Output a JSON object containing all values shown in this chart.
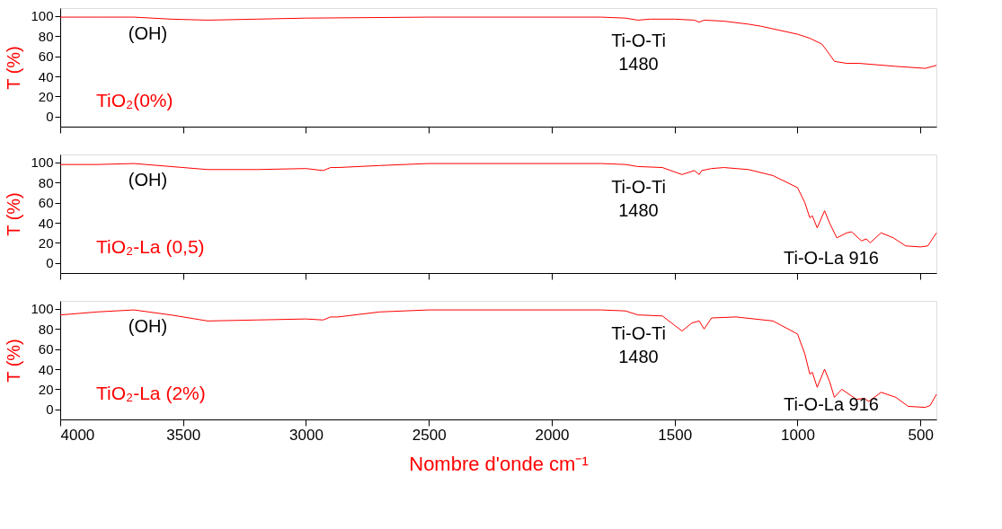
{
  "chart_data": [
    {
      "type": "line",
      "title": "TiO₂(0%)",
      "ylabel": "T (%)",
      "xlim": [
        4000,
        435
      ],
      "xticks": [
        4000,
        3500,
        3000,
        2500,
        2000,
        1500,
        1000,
        500
      ],
      "ylim": [
        -10,
        108
      ],
      "yticks": [
        0,
        20,
        40,
        60,
        80,
        100
      ],
      "tick_labels": "y",
      "grid": false,
      "marker": "none",
      "line_style": "solid",
      "annotations": [
        "(OH)",
        "Ti-O-Ti",
        "1480"
      ],
      "series": [
        {
          "color": "#ff0000",
          "x": [
            4000,
            3850,
            3700,
            3550,
            3400,
            3200,
            3000,
            2500,
            1800,
            1700,
            1650,
            1600,
            1500,
            1420,
            1400,
            1380,
            1300,
            1200,
            1150,
            1000,
            950,
            900,
            870,
            850,
            800,
            750,
            600,
            480,
            435
          ],
          "values": [
            99,
            99,
            99,
            97,
            96,
            97,
            98,
            99,
            99,
            98,
            96,
            97,
            97,
            96,
            94,
            96,
            95,
            92,
            90,
            82,
            78,
            72,
            62,
            55,
            53,
            53,
            50,
            48,
            51
          ]
        }
      ]
    },
    {
      "type": "line",
      "title": "TiO₂-La (0,5)",
      "ylabel": "T (%)",
      "xlim": [
        4000,
        435
      ],
      "xticks": [
        4000,
        3500,
        3000,
        2500,
        2000,
        1500,
        1000,
        500
      ],
      "ylim": [
        -10,
        108
      ],
      "yticks": [
        0,
        20,
        40,
        60,
        80,
        100
      ],
      "tick_labels": "y",
      "grid": false,
      "marker": "none",
      "line_style": "solid",
      "annotations": [
        "(OH)",
        "Ti-O-Ti",
        "1480",
        "Ti-O-La 916"
      ],
      "series": [
        {
          "color": "#ff0000",
          "x": [
            4000,
            3850,
            3700,
            3550,
            3400,
            3200,
            3000,
            2930,
            2900,
            2870,
            2700,
            2500,
            1800,
            1700,
            1650,
            1550,
            1470,
            1420,
            1400,
            1390,
            1350,
            1300,
            1200,
            1100,
            1000,
            970,
            950,
            940,
            920,
            890,
            870,
            840,
            800,
            780,
            740,
            720,
            705,
            660,
            610,
            560,
            500,
            470,
            435
          ],
          "values": [
            98,
            98,
            99,
            96,
            93,
            93,
            94,
            92,
            95,
            95,
            97,
            99,
            99,
            98,
            96,
            95,
            88,
            92,
            88,
            92,
            94,
            95,
            93,
            87,
            75,
            60,
            45,
            47,
            35,
            52,
            40,
            25,
            30,
            31,
            22,
            24,
            20,
            30,
            25,
            17,
            16,
            17,
            30
          ]
        }
      ]
    },
    {
      "type": "line",
      "title": "TiO₂-La (2%)",
      "ylabel": "T (%)",
      "xlabel": "Nombre d'onde cm⁻¹",
      "xlim": [
        4000,
        435
      ],
      "xticks": [
        4000,
        3500,
        3000,
        2500,
        2000,
        1500,
        1000,
        500
      ],
      "ylim": [
        -10,
        108
      ],
      "yticks": [
        0,
        20,
        40,
        60,
        80,
        100
      ],
      "grid": false,
      "marker": "none",
      "line_style": "solid",
      "annotations": [
        "(OH)",
        "Ti-O-Ti",
        "1480",
        "Ti-O-La 916"
      ],
      "series": [
        {
          "color": "#ff0000",
          "x": [
            4000,
            3850,
            3700,
            3550,
            3400,
            3200,
            3000,
            2930,
            2900,
            2870,
            2700,
            2500,
            1800,
            1700,
            1650,
            1550,
            1470,
            1430,
            1400,
            1380,
            1350,
            1250,
            1100,
            1000,
            970,
            950,
            940,
            920,
            890,
            870,
            850,
            820,
            760,
            730,
            710,
            660,
            600,
            550,
            480,
            460,
            435
          ],
          "values": [
            94,
            97,
            99,
            94,
            88,
            89,
            90,
            89,
            92,
            92,
            97,
            99,
            99,
            98,
            94,
            93,
            78,
            86,
            88,
            80,
            91,
            92,
            88,
            75,
            55,
            35,
            37,
            22,
            40,
            28,
            12,
            20,
            10,
            11,
            8,
            17,
            12,
            3,
            2,
            4,
            15
          ]
        }
      ]
    }
  ]
}
